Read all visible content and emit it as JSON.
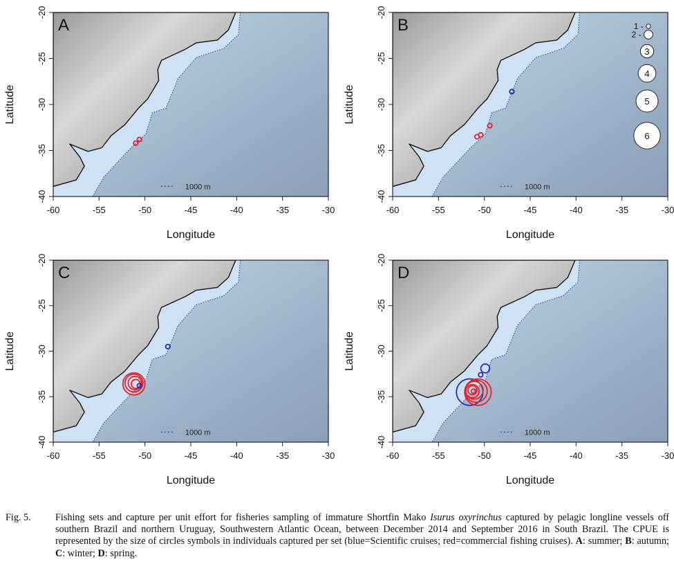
{
  "figure": {
    "xlabel": "Longitude",
    "ylabel": "Latitude",
    "xticks": [
      "-60",
      "-55",
      "-50",
      "-45",
      "-40",
      "-35",
      "-30"
    ],
    "yticks": [
      "-20",
      "-25",
      "-30",
      "-35",
      "-40"
    ],
    "isobath_label": "1000 m",
    "colors": {
      "scientific": "#2b2bb0",
      "commercial": "#e8202a",
      "isobath": "#2d5d8f",
      "land": "#a8a8a8",
      "shelf": "#cfe2f5",
      "ocean": "#9fb4cc"
    },
    "size_legend": {
      "items": [
        {
          "value": 1,
          "label": "1 -"
        },
        {
          "value": 2,
          "label": "2 -"
        },
        {
          "value": 3,
          "label": "3"
        },
        {
          "value": 4,
          "label": "4"
        },
        {
          "value": 5,
          "label": "5"
        },
        {
          "value": 6,
          "label": "6"
        }
      ]
    }
  },
  "chart_data": [
    {
      "type": "scatter",
      "panel": "A",
      "title": "A",
      "xlabel": "Longitude",
      "ylabel": "Latitude",
      "xlim": [
        -60,
        -30
      ],
      "ylim": [
        -40,
        -20
      ],
      "points": [
        {
          "lon": -51.0,
          "lat": -34.2,
          "cpue": 1,
          "fleet": "commercial"
        },
        {
          "lon": -50.6,
          "lat": -33.8,
          "cpue": 1,
          "fleet": "commercial"
        }
      ]
    },
    {
      "type": "scatter",
      "panel": "B",
      "title": "B",
      "xlabel": "Longitude",
      "ylabel": "Latitude",
      "xlim": [
        -60,
        -30
      ],
      "ylim": [
        -40,
        -20
      ],
      "points": [
        {
          "lon": -47.0,
          "lat": -28.6,
          "cpue": 1,
          "fleet": "scientific"
        },
        {
          "lon": -50.8,
          "lat": -33.5,
          "cpue": 1,
          "fleet": "commercial"
        },
        {
          "lon": -50.4,
          "lat": -33.3,
          "cpue": 1,
          "fleet": "commercial"
        },
        {
          "lon": -49.4,
          "lat": -32.3,
          "cpue": 1,
          "fleet": "commercial"
        }
      ]
    },
    {
      "type": "scatter",
      "panel": "C",
      "title": "C",
      "xlabel": "Longitude",
      "ylabel": "Latitude",
      "xlim": [
        -60,
        -30
      ],
      "ylim": [
        -40,
        -20
      ],
      "points": [
        {
          "lon": -47.5,
          "lat": -29.5,
          "cpue": 1,
          "fleet": "scientific"
        },
        {
          "lon": -51.2,
          "lat": -33.6,
          "cpue": 5,
          "fleet": "commercial"
        },
        {
          "lon": -51.2,
          "lat": -33.5,
          "cpue": 4,
          "fleet": "commercial"
        },
        {
          "lon": -51.1,
          "lat": -33.5,
          "cpue": 3,
          "fleet": "commercial"
        },
        {
          "lon": -51.0,
          "lat": -33.6,
          "cpue": 2,
          "fleet": "commercial"
        },
        {
          "lon": -50.6,
          "lat": -33.8,
          "cpue": 1,
          "fleet": "scientific"
        }
      ]
    },
    {
      "type": "scatter",
      "panel": "D",
      "title": "D",
      "xlabel": "Longitude",
      "ylabel": "Latitude",
      "xlim": [
        -60,
        -30
      ],
      "ylim": [
        -40,
        -20
      ],
      "points": [
        {
          "lon": -49.9,
          "lat": -31.9,
          "cpue": 2,
          "fleet": "scientific"
        },
        {
          "lon": -50.4,
          "lat": -32.6,
          "cpue": 1,
          "fleet": "scientific"
        },
        {
          "lon": -51.6,
          "lat": -34.5,
          "cpue": 6,
          "fleet": "scientific"
        },
        {
          "lon": -50.7,
          "lat": -34.5,
          "cpue": 6,
          "fleet": "commercial"
        },
        {
          "lon": -50.9,
          "lat": -34.4,
          "cpue": 5,
          "fleet": "commercial"
        },
        {
          "lon": -51.1,
          "lat": -34.3,
          "cpue": 4,
          "fleet": "commercial"
        },
        {
          "lon": -51.3,
          "lat": -34.4,
          "cpue": 3,
          "fleet": "commercial"
        },
        {
          "lon": -51.3,
          "lat": -34.3,
          "cpue": 2,
          "fleet": "commercial"
        },
        {
          "lon": -51.2,
          "lat": -34.4,
          "cpue": 1,
          "fleet": "commercial"
        }
      ]
    }
  ],
  "caption": {
    "number": "Fig. 5.",
    "text_1": "Fishing sets and capture per unit effort for fisheries sampling of immature Shortfin Mako ",
    "species": "Isurus oxyrinchus",
    "text_2": " captured by pelagic longline vessels off southern Brazil and northern Uruguay, Southwestern Atlantic Ocean, between December 2014 and September 2016 in South Brazil. The CPUE is represented by the size of circles symbols in individuals captured per set (blue=Scientific cruises; red=commercial fishing cruises). ",
    "a_key": "A",
    "a_text": ": summer; ",
    "b_key": "B",
    "b_text": ": autumn; ",
    "c_key": "C",
    "c_text": ": winter; ",
    "d_key": "D",
    "d_text": ": spring."
  }
}
